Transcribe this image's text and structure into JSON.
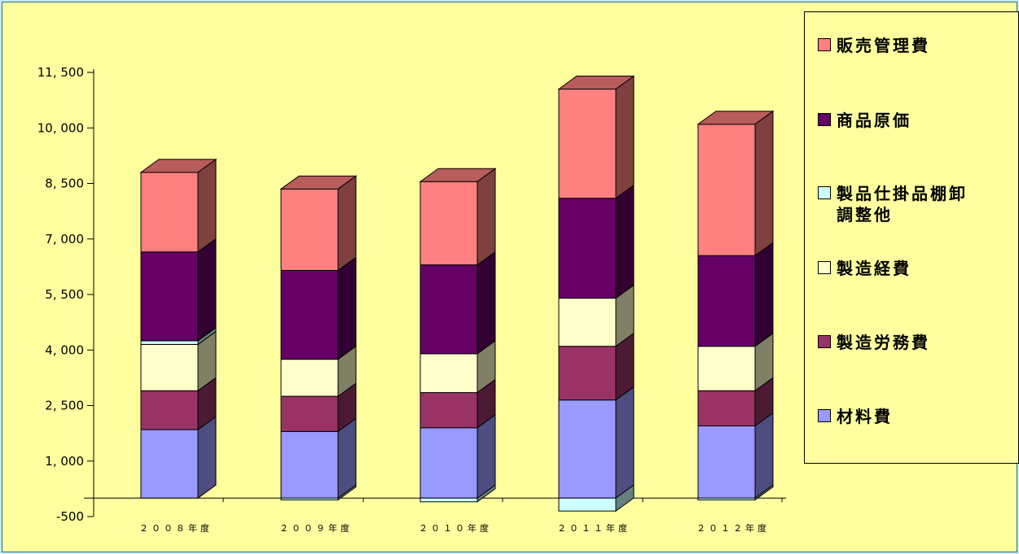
{
  "chart_data": {
    "type": "bar",
    "stacked": true,
    "three_d": true,
    "categories": [
      "２００８年度",
      "２００９年度",
      "２０１０年度",
      "２０１１年度",
      "２０１２年度"
    ],
    "series": [
      {
        "name": "材料費",
        "values": [
          1850,
          1800,
          1900,
          2650,
          1950
        ]
      },
      {
        "name": "製造労務費",
        "values": [
          1050,
          950,
          950,
          1450,
          950
        ]
      },
      {
        "name": "製造経費",
        "values": [
          1250,
          1000,
          1050,
          1300,
          1200
        ]
      },
      {
        "name": "製品仕掛品棚卸調整他",
        "values": [
          100,
          -50,
          -100,
          -350,
          -50
        ]
      },
      {
        "name": "商品原価",
        "values": [
          2400,
          2400,
          2400,
          2700,
          2450
        ]
      },
      {
        "name": "販売管理費",
        "values": [
          2150,
          2200,
          2250,
          2950,
          3550
        ]
      }
    ],
    "colors": {
      "材料費": "#9999ff",
      "製造労務費": "#993366",
      "製造経費": "#ffffcc",
      "製品仕掛品棚卸調整他": "#ccffff",
      "商品原価": "#660066",
      "販売管理費": "#ff8080"
    },
    "y_ticks": [
      -500,
      1000,
      2500,
      4000,
      5500,
      7000,
      8500,
      10000,
      11500
    ],
    "y_tick_labels": [
      "-500",
      "1, 000",
      "2, 500",
      "4, 000",
      "5, 500",
      "7, 000",
      "8, 500",
      "10, 000",
      "11, 500"
    ],
    "ylim": [
      -500,
      11500
    ],
    "grid": false,
    "legend_position": "right",
    "legend_order": [
      "販売管理費",
      "商品原価",
      "製品仕掛品棚卸調整他",
      "製造経費",
      "製造労務費",
      "材料費"
    ],
    "legend_labels": [
      "販売管理費",
      "商品原価",
      "製品仕掛品棚卸\n調整他",
      "製造経費",
      "製造労務費",
      "材料費"
    ]
  }
}
